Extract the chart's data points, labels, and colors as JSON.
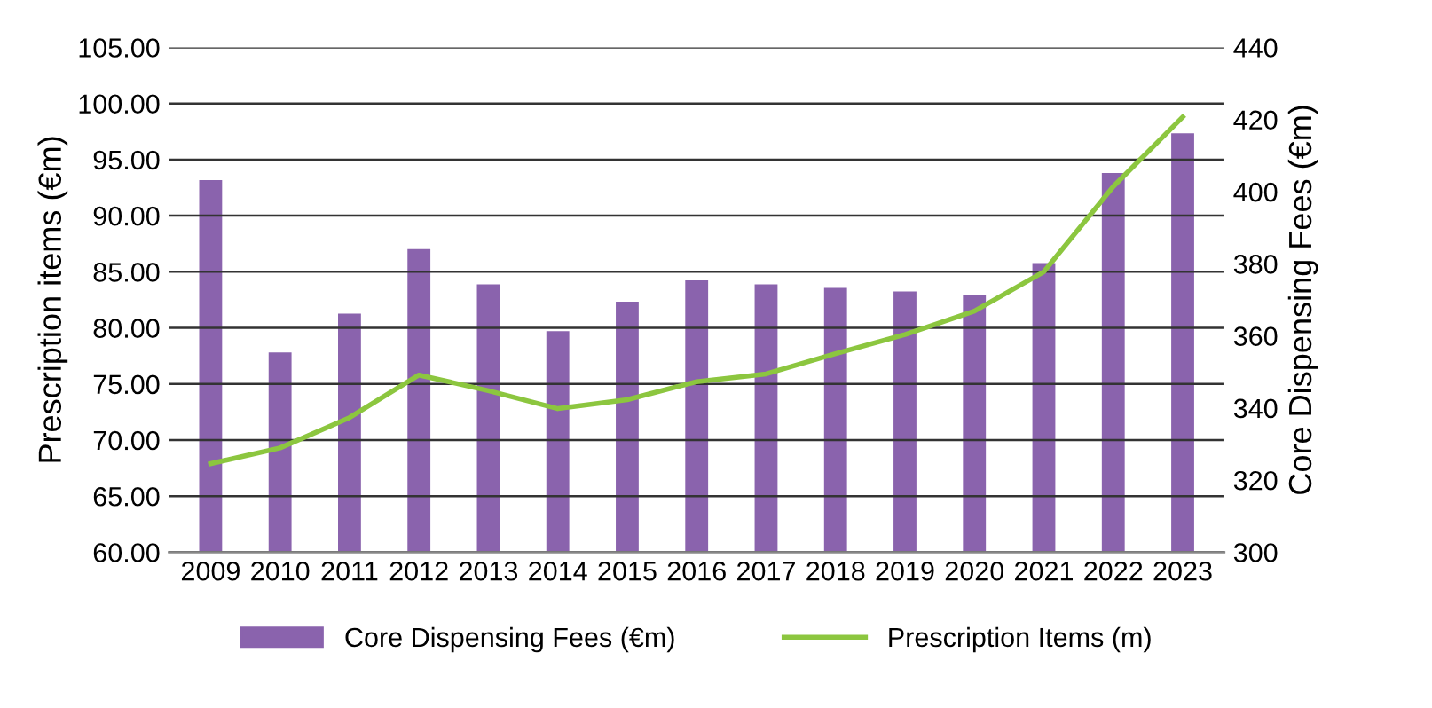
{
  "chart_data": {
    "type": "bar",
    "categories": [
      "2009",
      "2010",
      "2011",
      "2012",
      "2013",
      "2014",
      "2015",
      "2016",
      "2017",
      "2018",
      "2019",
      "2020",
      "2021",
      "2022",
      "2023"
    ],
    "series": [
      {
        "name": "Core Dispensing Fees (€m)",
        "axis": "y2",
        "color": "#8a63ad",
        "values": [
          403.2,
          355.4,
          366.2,
          384.1,
          374.3,
          361.3,
          369.5,
          375.4,
          374.3,
          373.3,
          372.3,
          371.3,
          380.2,
          405.2,
          416.2
        ]
      },
      {
        "name": "Prescription Items (m)",
        "type": "line",
        "axis": "y",
        "color": "#8cc63f",
        "values": [
          67.9,
          69.3,
          72.0,
          75.8,
          74.4,
          72.8,
          73.6,
          75.2,
          75.9,
          77.7,
          79.4,
          81.5,
          85.0,
          92.6,
          98.8
        ]
      }
    ],
    "ylabel": "Prescription items (€m)",
    "y2label": "Core Dispensing Fees (€m)",
    "ylim": [
      60,
      105
    ],
    "yticks": [
      {
        "value": 60,
        "label": "60.00"
      },
      {
        "value": 65,
        "label": "65.00"
      },
      {
        "value": 70,
        "label": "70.00"
      },
      {
        "value": 75,
        "label": "75.00"
      },
      {
        "value": 80,
        "label": "80.00"
      },
      {
        "value": 85,
        "label": "85.00"
      },
      {
        "value": 90,
        "label": "90.00"
      },
      {
        "value": 95,
        "label": "95.00"
      },
      {
        "value": 100,
        "label": "100.00"
      },
      {
        "value": 105,
        "label": "105.00"
      }
    ],
    "y2lim": [
      300,
      440
    ],
    "y2ticks": [
      300,
      320,
      340,
      360,
      380,
      400,
      420,
      440
    ],
    "grid": "y",
    "legend": "bottom",
    "marker": "none",
    "line_style": "solid"
  }
}
